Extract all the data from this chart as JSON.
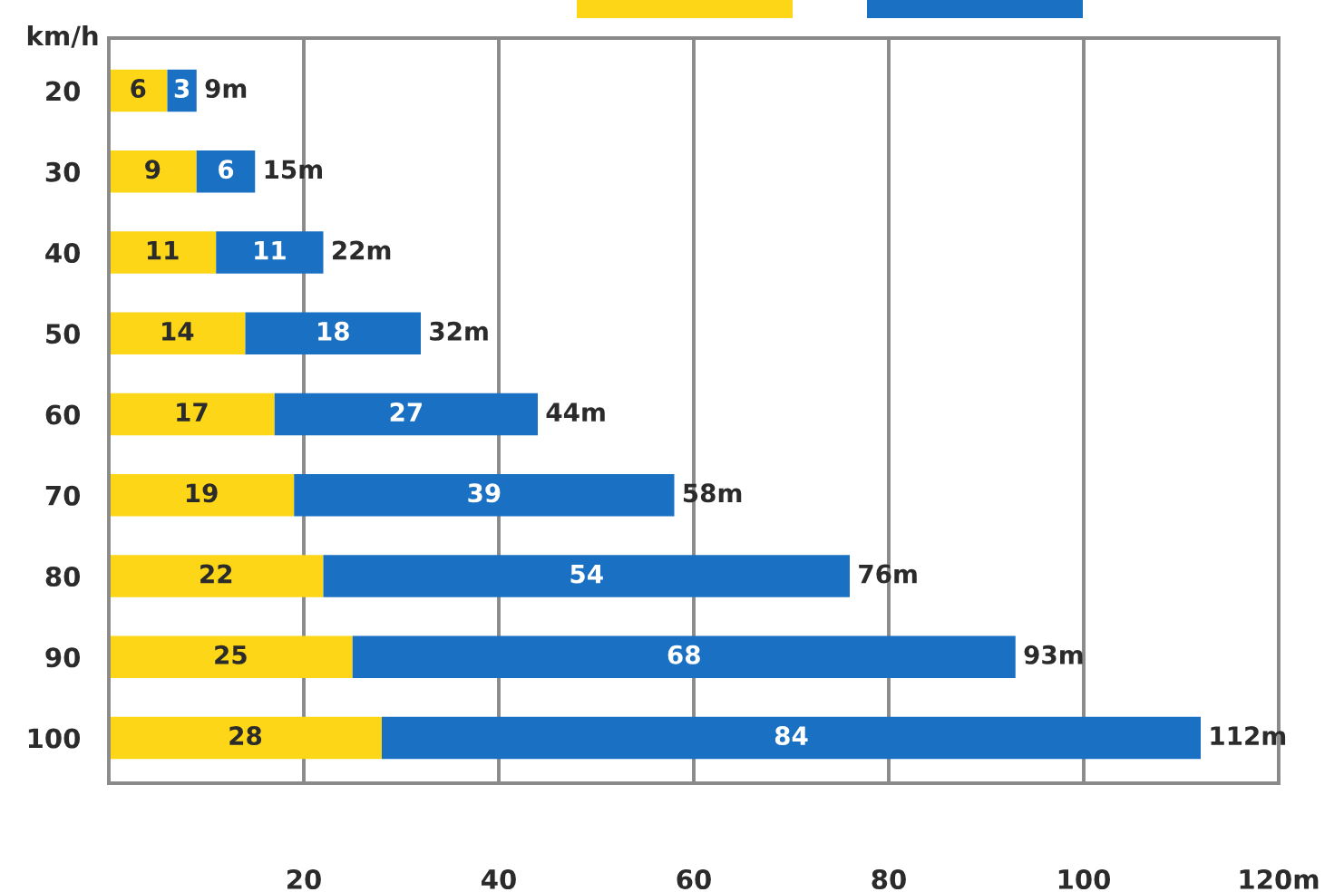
{
  "chart_data": {
    "type": "bar",
    "orientation": "horizontal",
    "stacked": true,
    "ylabel": "km/h",
    "categories": [
      "20",
      "30",
      "40",
      "50",
      "60",
      "70",
      "80",
      "90",
      "100"
    ],
    "series": [
      {
        "color": "#fcd617",
        "values": [
          6,
          9,
          11,
          14,
          17,
          19,
          22,
          25,
          28
        ]
      },
      {
        "color": "#1a70c2",
        "values": [
          3,
          6,
          11,
          18,
          27,
          39,
          54,
          68,
          84
        ]
      }
    ],
    "data_labels": true,
    "totals": [
      "9m",
      "15m",
      "22m",
      "32m",
      "44m",
      "58m",
      "76m",
      "93m",
      "112m"
    ],
    "xlim": [
      0,
      120
    ],
    "xticks": [
      20,
      40,
      60,
      80,
      100,
      {
        "value": 120,
        "label": "120m"
      }
    ],
    "grid": "x"
  }
}
